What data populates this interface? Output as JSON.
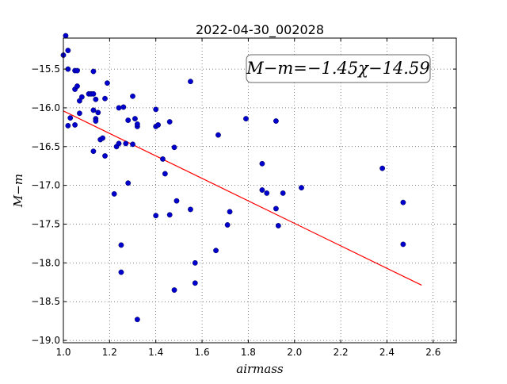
{
  "chart_data": {
    "type": "scatter",
    "title": "2022-04-30_002028",
    "xlabel": "airmass",
    "ylabel": "M−m",
    "xlim": [
      1.0,
      2.7
    ],
    "ylim": [
      -19.03,
      -15.1
    ],
    "xticks": [
      1.0,
      1.2,
      1.4,
      1.6,
      1.8,
      2.0,
      2.2,
      2.4,
      2.6
    ],
    "xtick_labels": [
      "1.0",
      "1.2",
      "1.4",
      "1.6",
      "1.8",
      "2.0",
      "2.2",
      "2.4",
      "2.6"
    ],
    "yticks": [
      -15.5,
      -16.0,
      -16.5,
      -17.0,
      -17.5,
      -18.0,
      -18.5,
      -19.0
    ],
    "ytick_labels": [
      "−15.5",
      "−16.0",
      "−16.5",
      "−17.0",
      "−17.5",
      "−18.0",
      "−18.5",
      "−19.0"
    ],
    "grid": true,
    "annotation": "M−m=−1.45χ−14.59",
    "fit_line": {
      "slope": -1.45,
      "intercept": -14.59,
      "x_range": [
        1.0,
        2.55
      ],
      "color": "#ff0000"
    },
    "point_color": "#0000cc",
    "points": [
      [
        1.01,
        -15.07
      ],
      [
        1.0,
        -15.32
      ],
      [
        1.02,
        -15.26
      ],
      [
        1.02,
        -15.5
      ],
      [
        1.05,
        -15.52
      ],
      [
        1.06,
        -15.52
      ],
      [
        1.05,
        -15.76
      ],
      [
        1.06,
        -15.72
      ],
      [
        1.08,
        -15.86
      ],
      [
        1.07,
        -15.91
      ],
      [
        1.11,
        -15.82
      ],
      [
        1.12,
        -15.82
      ],
      [
        1.13,
        -15.82
      ],
      [
        1.13,
        -15.53
      ],
      [
        1.14,
        -15.89
      ],
      [
        1.18,
        -15.88
      ],
      [
        1.19,
        -15.68
      ],
      [
        1.02,
        -16.23
      ],
      [
        1.03,
        -16.13
      ],
      [
        1.05,
        -16.22
      ],
      [
        1.07,
        -16.07
      ],
      [
        1.13,
        -16.03
      ],
      [
        1.14,
        -16.14
      ],
      [
        1.14,
        -16.17
      ],
      [
        1.15,
        -16.06
      ],
      [
        1.16,
        -16.41
      ],
      [
        1.17,
        -16.39
      ],
      [
        1.13,
        -16.56
      ],
      [
        1.18,
        -16.62
      ],
      [
        1.24,
        -16.0
      ],
      [
        1.26,
        -15.99
      ],
      [
        1.28,
        -16.16
      ],
      [
        1.3,
        -15.85
      ],
      [
        1.31,
        -16.14
      ],
      [
        1.32,
        -16.24
      ],
      [
        1.32,
        -16.21
      ],
      [
        1.23,
        -16.5
      ],
      [
        1.24,
        -16.46
      ],
      [
        1.27,
        -16.46
      ],
      [
        1.3,
        -16.47
      ],
      [
        1.4,
        -16.02
      ],
      [
        1.4,
        -16.24
      ],
      [
        1.41,
        -16.22
      ],
      [
        1.46,
        -16.18
      ],
      [
        1.55,
        -15.66
      ],
      [
        1.48,
        -16.51
      ],
      [
        1.43,
        -16.66
      ],
      [
        1.44,
        -16.85
      ],
      [
        1.22,
        -17.11
      ],
      [
        1.28,
        -16.97
      ],
      [
        1.4,
        -17.39
      ],
      [
        1.46,
        -17.38
      ],
      [
        1.49,
        -17.2
      ],
      [
        1.55,
        -17.31
      ],
      [
        1.25,
        -17.77
      ],
      [
        1.25,
        -18.12
      ],
      [
        1.32,
        -18.73
      ],
      [
        1.48,
        -18.35
      ],
      [
        1.57,
        -18.0
      ],
      [
        1.57,
        -18.26
      ],
      [
        1.66,
        -17.84
      ],
      [
        1.67,
        -16.35
      ],
      [
        1.71,
        -17.51
      ],
      [
        1.72,
        -17.34
      ],
      [
        1.79,
        -16.14
      ],
      [
        1.86,
        -16.72
      ],
      [
        1.86,
        -17.06
      ],
      [
        1.88,
        -17.1
      ],
      [
        1.92,
        -16.17
      ],
      [
        1.92,
        -17.3
      ],
      [
        1.93,
        -17.52
      ],
      [
        1.95,
        -17.1
      ],
      [
        2.03,
        -17.03
      ],
      [
        2.38,
        -16.78
      ],
      [
        2.47,
        -17.22
      ],
      [
        2.47,
        -17.76
      ]
    ]
  }
}
